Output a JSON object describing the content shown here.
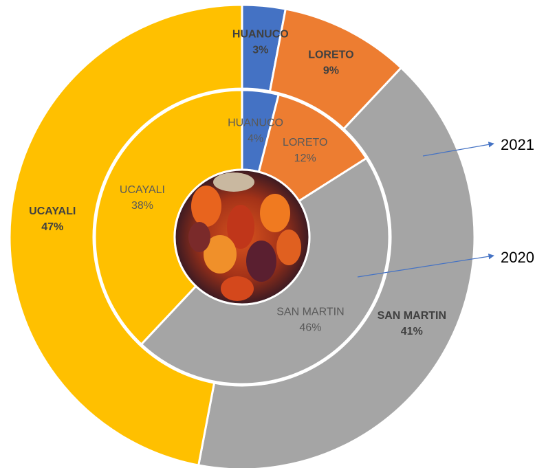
{
  "chart_data": {
    "type": "donut",
    "categories": [
      "HUANUCO",
      "LORETO",
      "SAN MARTIN",
      "UCAYALI"
    ],
    "colors": [
      "#4472c4",
      "#ed7d31",
      "#a5a5a5",
      "#ffc000"
    ],
    "series": [
      {
        "name": "2021",
        "values": [
          3,
          9,
          41,
          47
        ],
        "value_labels": [
          "3%",
          "9%",
          "41%",
          "47%"
        ]
      },
      {
        "name": "2020",
        "values": [
          4,
          12,
          46,
          38
        ],
        "value_labels": [
          "4%",
          "12%",
          "46%",
          "38%"
        ]
      }
    ]
  }
}
